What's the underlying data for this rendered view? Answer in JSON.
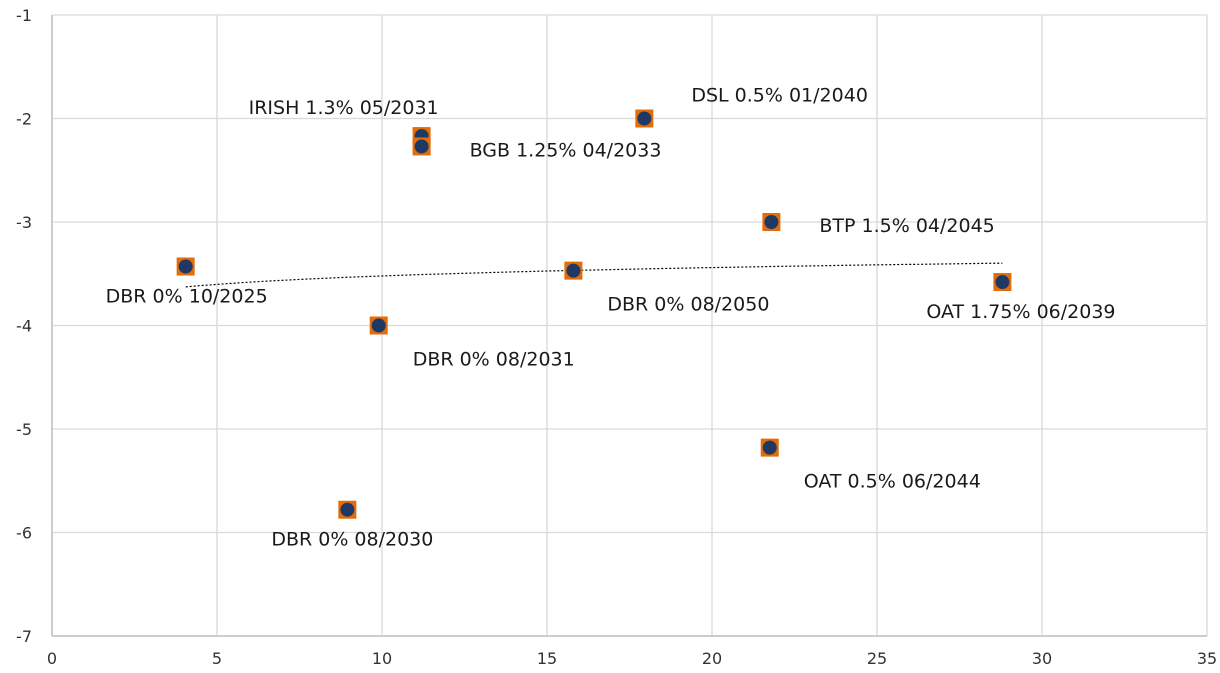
{
  "chart_data": {
    "type": "scatter",
    "xlim": [
      0,
      35
    ],
    "ylim": [
      -7,
      -1
    ],
    "xticks": [
      "0",
      "5",
      "10",
      "15",
      "20",
      "25",
      "30",
      "35"
    ],
    "yticks": [
      "-1",
      "-2",
      "-3",
      "-4",
      "-5",
      "-6",
      "-7"
    ],
    "grid": true,
    "trendline": {
      "style": "dotted",
      "type": "logarithmic"
    },
    "marker_colors": {
      "square": "#E36C0A",
      "dot": "#1F3864"
    },
    "points": [
      {
        "label": "DBR 0% 10/2025",
        "x": 4.05,
        "y": -3.43,
        "label_pos": "below-left"
      },
      {
        "label": "DBR 0% 08/2030",
        "x": 8.95,
        "y": -5.78,
        "label_pos": "below"
      },
      {
        "label": "DBR 0% 08/2031",
        "x": 9.9,
        "y": -4.0,
        "label_pos": "below-right"
      },
      {
        "label": "IRISH 1.3% 05/2031",
        "x": 11.2,
        "y": -2.17,
        "label_pos": "above-left"
      },
      {
        "label": "BGB 1.25% 04/2033",
        "x": 11.2,
        "y": -2.27,
        "label_pos": "right"
      },
      {
        "label": "DBR 0% 08/2050",
        "x": 15.8,
        "y": -3.47,
        "label_pos": "below-right"
      },
      {
        "label": "DSL 0.5% 01/2040",
        "x": 17.95,
        "y": -2.0,
        "label_pos": "above-right"
      },
      {
        "label": "BTP 1.5% 04/2045",
        "x": 21.8,
        "y": -3.0,
        "label_pos": "right"
      },
      {
        "label": "OAT 0.5% 06/2044",
        "x": 21.75,
        "y": -5.18,
        "label_pos": "below-right"
      },
      {
        "label": "OAT 1.75% 06/2039",
        "x": 28.8,
        "y": -3.58,
        "label_pos": "below"
      }
    ]
  }
}
